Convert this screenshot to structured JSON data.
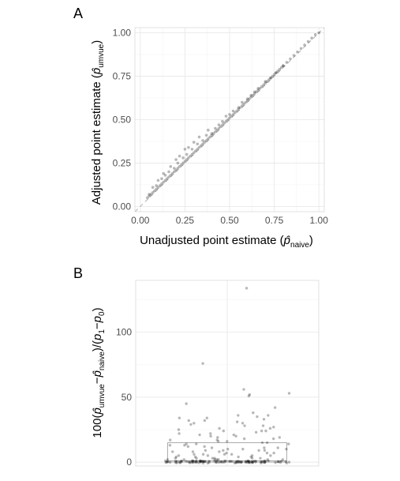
{
  "chart_data": [
    {
      "panel": "A",
      "type": "scatter",
      "xlabel": "Unadjusted point estimate (p̂naive)",
      "ylabel": "Adjusted point estimate (p̂umvue)",
      "xlim": [
        -0.03,
        1.03
      ],
      "ylim": [
        -0.03,
        1.03
      ],
      "xticks": [
        "0.00",
        "0.25",
        "0.50",
        "0.75",
        "1.00"
      ],
      "yticks": [
        "0.00",
        "0.25",
        "0.50",
        "0.75",
        "1.00"
      ],
      "grid": true,
      "reference_line": {
        "slope": 1,
        "intercept": 0,
        "style": "dashed"
      },
      "x": [
        0.04,
        0.05,
        0.06,
        0.07,
        0.08,
        0.09,
        0.1,
        0.11,
        0.12,
        0.13,
        0.14,
        0.15,
        0.16,
        0.17,
        0.18,
        0.19,
        0.2,
        0.21,
        0.22,
        0.23,
        0.24,
        0.25,
        0.26,
        0.27,
        0.28,
        0.29,
        0.3,
        0.31,
        0.32,
        0.33,
        0.34,
        0.35,
        0.36,
        0.37,
        0.38,
        0.39,
        0.4,
        0.41,
        0.42,
        0.43,
        0.44,
        0.45,
        0.46,
        0.47,
        0.48,
        0.49,
        0.5,
        0.51,
        0.52,
        0.53,
        0.54,
        0.55,
        0.56,
        0.57,
        0.58,
        0.59,
        0.6,
        0.61,
        0.62,
        0.63,
        0.64,
        0.65,
        0.66,
        0.67,
        0.68,
        0.69,
        0.7,
        0.71,
        0.72,
        0.73,
        0.74,
        0.75,
        0.76,
        0.77,
        0.78,
        0.79,
        0.8,
        0.82,
        0.84,
        0.86,
        0.88,
        0.9,
        0.92,
        0.94,
        0.96,
        0.98,
        1.0,
        0.05,
        0.07,
        0.09,
        0.1,
        0.12,
        0.13,
        0.14,
        0.16,
        0.17,
        0.19,
        0.2,
        0.21,
        0.22,
        0.24,
        0.25,
        0.26,
        0.27,
        0.29,
        0.3,
        0.32,
        0.33,
        0.35,
        0.37,
        0.38,
        0.4,
        0.42,
        0.44,
        0.46,
        0.48,
        0.5,
        0.52,
        0.55,
        0.57,
        0.6,
        0.62,
        0.64,
        0.66,
        0.7,
        0.73,
        0.76,
        0.8
      ],
      "y": [
        0.05,
        0.06,
        0.07,
        0.08,
        0.09,
        0.1,
        0.11,
        0.12,
        0.13,
        0.14,
        0.15,
        0.16,
        0.17,
        0.18,
        0.19,
        0.2,
        0.21,
        0.22,
        0.23,
        0.24,
        0.25,
        0.26,
        0.27,
        0.28,
        0.29,
        0.3,
        0.31,
        0.32,
        0.33,
        0.34,
        0.35,
        0.36,
        0.37,
        0.38,
        0.39,
        0.4,
        0.41,
        0.42,
        0.43,
        0.44,
        0.45,
        0.46,
        0.47,
        0.48,
        0.49,
        0.5,
        0.51,
        0.52,
        0.53,
        0.54,
        0.55,
        0.56,
        0.57,
        0.58,
        0.59,
        0.6,
        0.61,
        0.62,
        0.63,
        0.64,
        0.65,
        0.66,
        0.67,
        0.68,
        0.69,
        0.7,
        0.71,
        0.72,
        0.73,
        0.74,
        0.75,
        0.76,
        0.77,
        0.78,
        0.79,
        0.8,
        0.81,
        0.83,
        0.85,
        0.87,
        0.89,
        0.91,
        0.93,
        0.95,
        0.97,
        0.99,
        1.0,
        0.07,
        0.11,
        0.12,
        0.15,
        0.16,
        0.19,
        0.18,
        0.2,
        0.23,
        0.22,
        0.27,
        0.25,
        0.29,
        0.28,
        0.33,
        0.3,
        0.34,
        0.33,
        0.37,
        0.36,
        0.4,
        0.38,
        0.41,
        0.44,
        0.42,
        0.45,
        0.47,
        0.49,
        0.52,
        0.53,
        0.55,
        0.57,
        0.6,
        0.62,
        0.64,
        0.66,
        0.68,
        0.72,
        0.74,
        0.77,
        0.81
      ]
    },
    {
      "panel": "B",
      "type": "boxplot",
      "xlabel": "",
      "ylabel": "100(p̂umvue−p̂naive)/(p1−p0)",
      "ylim": [
        -3,
        140
      ],
      "yticks": [
        "0",
        "50",
        "100"
      ],
      "grid": true,
      "box": {
        "q1": 0,
        "median": 1,
        "q3": 15,
        "whisker_low": 0,
        "whisker_high": 15
      },
      "values": [
        134,
        76,
        56,
        53,
        52,
        51,
        45,
        42,
        38,
        36,
        35,
        34,
        33,
        32,
        31,
        30,
        29,
        28,
        27,
        26,
        25,
        24,
        23,
        22,
        21,
        20,
        19,
        18,
        17,
        16,
        15,
        14,
        13,
        12,
        11,
        10,
        10,
        9,
        9,
        8,
        8,
        7,
        7,
        6,
        6,
        5,
        5,
        5,
        4,
        4,
        4,
        3,
        3,
        3,
        3,
        2,
        2,
        2,
        2,
        2,
        1,
        1,
        1,
        1,
        1,
        1,
        1,
        1,
        1,
        1,
        0,
        0,
        0,
        0,
        0,
        0,
        0,
        0,
        0,
        0,
        0,
        0,
        0,
        0,
        0,
        0,
        0,
        0,
        0,
        0,
        0,
        0,
        0,
        0,
        0,
        0,
        0,
        0,
        0,
        0,
        0,
        0,
        0,
        0,
        0,
        0,
        0,
        0,
        0,
        0,
        0,
        0,
        0,
        0,
        0,
        0,
        0,
        0,
        0,
        0,
        0,
        0,
        0,
        0,
        0,
        0,
        0,
        0,
        0,
        0,
        0,
        0,
        0,
        0,
        0,
        0,
        0,
        0,
        0,
        0,
        0,
        0,
        0,
        0,
        0,
        0,
        0,
        0,
        0,
        0,
        0,
        0,
        0,
        0,
        0,
        0,
        0,
        0,
        0,
        0,
        0,
        0,
        0,
        0,
        1,
        2,
        3,
        1,
        2,
        3,
        4,
        5,
        6,
        7,
        8,
        9,
        10,
        11,
        12,
        13,
        14,
        15,
        16,
        18,
        20,
        22,
        24,
        26,
        28,
        30,
        32,
        34,
        36,
        21,
        24,
        19,
        17,
        14,
        11,
        9,
        6
      ]
    }
  ]
}
